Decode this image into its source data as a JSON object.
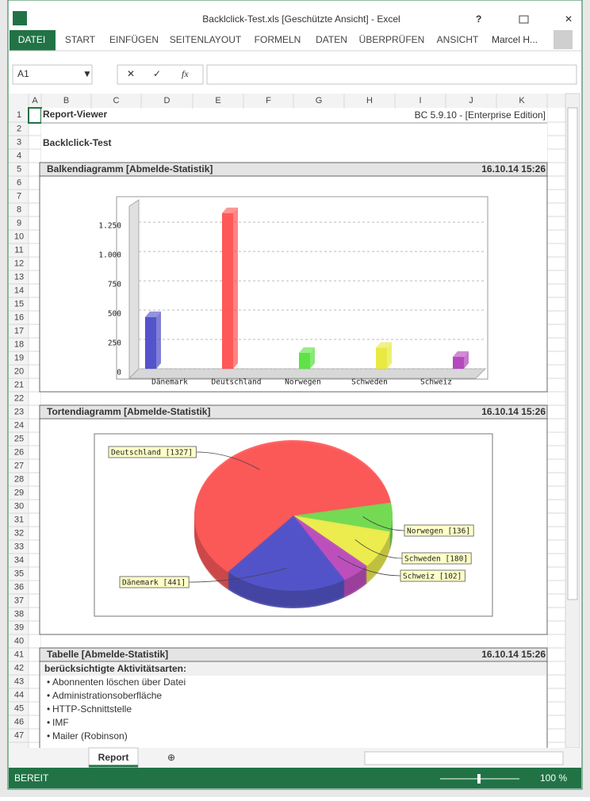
{
  "window": {
    "title": "Backlclick-Test.xls  [Geschützte Ansicht] - Excel",
    "user": "Marcel H..."
  },
  "ribbon": {
    "tabs": [
      "DATEI",
      "START",
      "EINFÜGEN",
      "SEITENLAYOUT",
      "FORMELN",
      "DATEN",
      "ÜBERPRÜFEN",
      "ANSICHT"
    ]
  },
  "formula_bar": {
    "name_box": "A1",
    "fx": "fx"
  },
  "sheet": {
    "columns": [
      "A",
      "B",
      "C",
      "D",
      "E",
      "F",
      "G",
      "H",
      "I",
      "J",
      "K"
    ],
    "rows": [
      1,
      2,
      3,
      4,
      5,
      6,
      7,
      8,
      9,
      10,
      11,
      12,
      13,
      14,
      15,
      16,
      17,
      18,
      19,
      20,
      21,
      22,
      23,
      24,
      25,
      26,
      27,
      28,
      29,
      30,
      31,
      32,
      33,
      34,
      35,
      36,
      37,
      38,
      39,
      40,
      41,
      42,
      43,
      44,
      45,
      46,
      47
    ]
  },
  "cells": {
    "title": "Report-Viewer",
    "version": "BC 5.9.10 - [Enterprise Edition]",
    "name": "Backlclick-Test"
  },
  "sections": [
    {
      "title": "Balkendiagramm [Abmelde-Statistik]",
      "timestamp": "16.10.14 15:26"
    },
    {
      "title": "Tortendiagramm [Abmelde-Statistik]",
      "timestamp": "16.10.14 15:26"
    },
    {
      "title": "Tabelle [Abmelde-Statistik]",
      "timestamp": "16.10.14 15:26"
    }
  ],
  "table": {
    "heading": "berücksichtigte Aktivitätsarten:",
    "items": [
      "Abonnenten löschen über Datei",
      "Administrationsoberfläche",
      "HTTP-Schnittstelle",
      "IMF",
      "Mailer (Robinson)"
    ]
  },
  "sheet_tab": "Report",
  "status": {
    "mode": "BEREIT",
    "zoom": "100 %"
  },
  "chart_data": [
    {
      "type": "bar",
      "categories": [
        "Dänemark",
        "Deutschland",
        "Norwegen",
        "Schweden",
        "Schweiz"
      ],
      "values": [
        441,
        1327,
        136,
        180,
        102
      ],
      "colors": [
        "#4a4ac8",
        "#ff4f4f",
        "#55e03c",
        "#e8e83a",
        "#b040b8"
      ],
      "ylim": [
        0,
        1440
      ],
      "yticks": [
        0,
        250,
        500,
        750,
        {
          "value": 1000,
          "label": "1.000"
        },
        {
          "value": 1250,
          "label": "1.250"
        }
      ],
      "grid": true
    },
    {
      "type": "pie",
      "categories": [
        "Dänemark",
        "Deutschland",
        "Norwegen",
        "Schweden",
        "Schweiz"
      ],
      "values": [
        441,
        1327,
        136,
        180,
        102
      ],
      "value_labels": [
        "Dänemark [441]",
        "Deutschland [1327]",
        "Norwegen [136]",
        "Schweden [180]",
        "Schweiz [102]"
      ],
      "colors": [
        "#5555cc",
        "#ff5a5a",
        "#77dd55",
        "#f0f050",
        "#c050c0"
      ]
    }
  ]
}
